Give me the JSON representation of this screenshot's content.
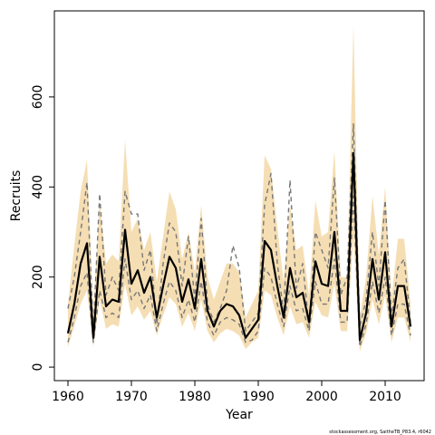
{
  "chart_data": {
    "type": "line",
    "xlabel": "Year",
    "ylabel": "Recruits",
    "footnote": "stockassessment.org, SaitheTB_P83.4, r6042",
    "xlim": [
      1957.86,
      2016.14
    ],
    "ylim": [
      -30,
      791
    ],
    "xticks": [
      1960,
      1970,
      1980,
      1990,
      2000,
      2010
    ],
    "yticks": [
      0,
      200,
      400,
      600
    ],
    "x": [
      1960,
      1961,
      1962,
      1963,
      1964,
      1965,
      1966,
      1967,
      1968,
      1969,
      1970,
      1971,
      1972,
      1973,
      1974,
      1975,
      1976,
      1977,
      1978,
      1979,
      1980,
      1981,
      1982,
      1983,
      1984,
      1985,
      1986,
      1987,
      1988,
      1989,
      1990,
      1991,
      1992,
      1993,
      1994,
      1995,
      1996,
      1997,
      1998,
      1999,
      2000,
      2001,
      2002,
      2003,
      2004,
      2005,
      2006,
      2007,
      2008,
      2009,
      2010,
      2011,
      2012,
      2013,
      2014
    ],
    "band": {
      "color": "#f5deb3",
      "upper": [
        140,
        270,
        390,
        460,
        120,
        370,
        230,
        250,
        235,
        505,
        300,
        330,
        260,
        300,
        190,
        290,
        390,
        350,
        240,
        300,
        210,
        360,
        200,
        150,
        190,
        230,
        230,
        210,
        110,
        140,
        170,
        470,
        440,
        310,
        190,
        360,
        260,
        270,
        160,
        370,
        290,
        300,
        480,
        200,
        200,
        760,
        110,
        200,
        380,
        250,
        400,
        150,
        285,
        285,
        140
      ],
      "lower": [
        45,
        90,
        140,
        170,
        45,
        150,
        85,
        95,
        90,
        185,
        115,
        135,
        105,
        125,
        70,
        115,
        155,
        140,
        90,
        120,
        80,
        150,
        80,
        55,
        75,
        85,
        80,
        70,
        40,
        55,
        65,
        170,
        160,
        110,
        70,
        135,
        95,
        100,
        65,
        145,
        115,
        110,
        185,
        80,
        80,
        290,
        35,
        75,
        150,
        95,
        160,
        55,
        110,
        110,
        55
      ]
    },
    "series": [
      {
        "color": "#000000",
        "style": "solid",
        "values": [
          75,
          140,
          230,
          275,
          65,
          245,
          135,
          150,
          145,
          305,
          185,
          215,
          165,
          200,
          110,
          180,
          245,
          220,
          145,
          195,
          130,
          240,
          125,
          90,
          125,
          140,
          135,
          115,
          65,
          85,
          105,
          280,
          260,
          180,
          110,
          220,
          155,
          165,
          100,
          235,
          185,
          180,
          300,
          125,
          125,
          475,
          60,
          120,
          240,
          150,
          255,
          90,
          180,
          180,
          90
        ]
      },
      {
        "color": "#777777",
        "style": "dashed",
        "values": [
          130,
          200,
          300,
          410,
          80,
          385,
          160,
          200,
          170,
          390,
          340,
          340,
          215,
          260,
          95,
          230,
          320,
          300,
          180,
          290,
          150,
          330,
          140,
          100,
          130,
          170,
          270,
          220,
          80,
          100,
          120,
          360,
          430,
          230,
          120,
          415,
          175,
          230,
          90,
          300,
          260,
          220,
          420,
          160,
          200,
          540,
          90,
          150,
          300,
          180,
          370,
          110,
          220,
          240,
          100
        ]
      },
      {
        "color": "#777777",
        "style": "dashed",
        "values": [
          55,
          110,
          180,
          210,
          55,
          170,
          110,
          120,
          110,
          240,
          150,
          170,
          130,
          160,
          80,
          140,
          190,
          170,
          110,
          150,
          100,
          190,
          100,
          70,
          100,
          110,
          105,
          95,
          55,
          60,
          80,
          220,
          200,
          140,
          90,
          180,
          125,
          130,
          80,
          190,
          140,
          140,
          240,
          100,
          100,
          380,
          45,
          95,
          190,
          120,
          200,
          70,
          140,
          140,
          70
        ]
      }
    ]
  }
}
